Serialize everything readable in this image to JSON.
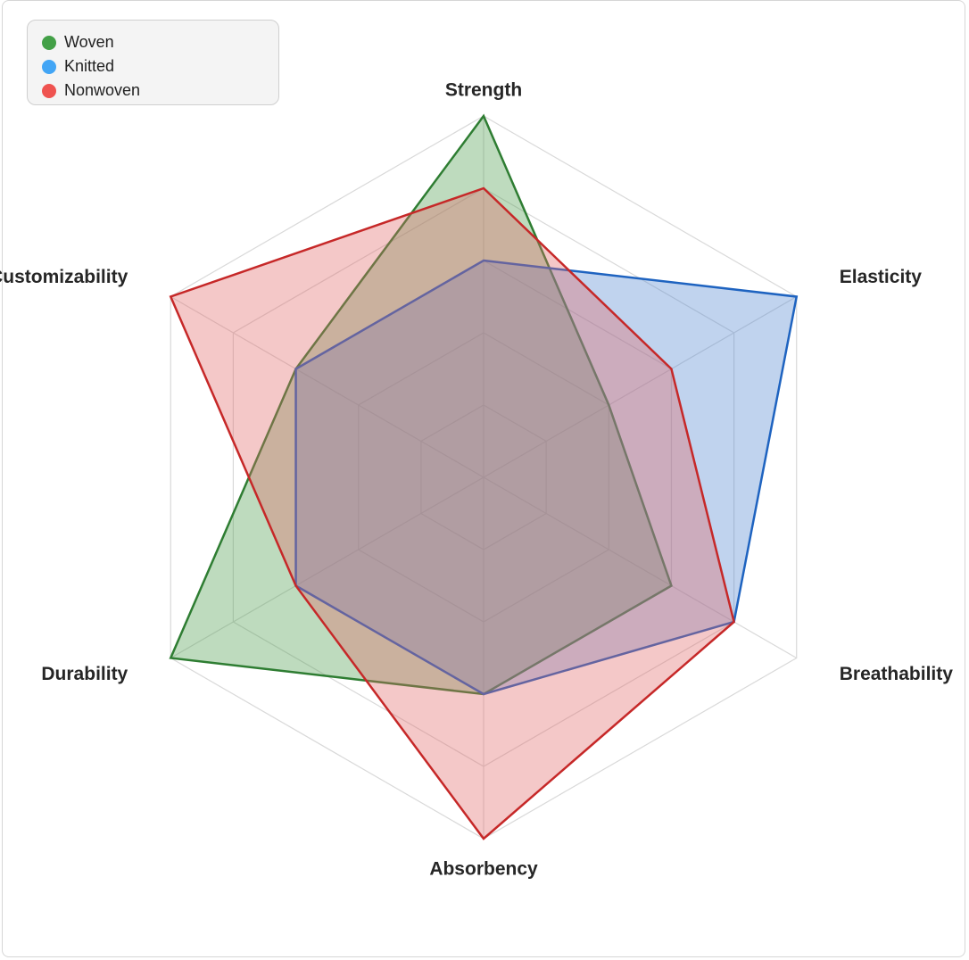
{
  "chart_data": {
    "type": "radar",
    "axes": [
      "Strength",
      "Elasticity",
      "Breathability",
      "Absorbency",
      "Durability",
      "Customizability"
    ],
    "range": [
      0,
      5
    ],
    "levels": 5,
    "grid": true,
    "legend_position": "top-left",
    "series": [
      {
        "name": "Woven",
        "color": "#2e7d32",
        "fill": "#4a9a4a",
        "legend_color": "#43a047",
        "values": [
          5,
          2,
          3,
          3,
          5,
          3
        ]
      },
      {
        "name": "Knitted",
        "color": "#1e63c0",
        "fill": "#4f86d1",
        "legend_color": "#42a5f5",
        "values": [
          3,
          5,
          4,
          3,
          3,
          3
        ]
      },
      {
        "name": "Nonwoven",
        "color": "#c62828",
        "fill": "#e06666",
        "legend_color": "#ef5350",
        "values": [
          4,
          3,
          4,
          5,
          3,
          5
        ]
      }
    ]
  }
}
